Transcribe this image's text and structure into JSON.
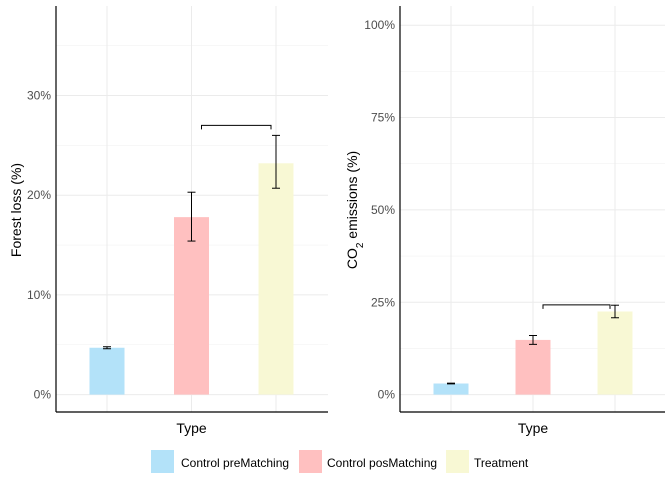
{
  "chart_data": [
    {
      "type": "bar",
      "xlabel": "Type",
      "ylabel": "Forest loss (%)",
      "ylim": [
        0,
        38
      ],
      "yticks": [
        0,
        10,
        20,
        30
      ],
      "ytick_labels": [
        "0%",
        "10%",
        "20%",
        "30%"
      ],
      "categories": [
        "Control preMatching",
        "Control posMatching",
        "Treatment"
      ],
      "values": [
        4.7,
        17.8,
        23.2
      ],
      "error_low": [
        4.6,
        15.4,
        20.7
      ],
      "error_high": [
        4.8,
        20.3,
        26.0
      ],
      "bracket": {
        "from": "Control posMatching",
        "to": "Treatment",
        "y": 27.0
      },
      "grid": true
    },
    {
      "type": "bar",
      "xlabel": "Type",
      "ylabel_main": "CO",
      "ylabel_sub": "2",
      "ylabel_rest": " emissions (%)",
      "ylim": [
        0,
        105
      ],
      "yticks": [
        0,
        25,
        50,
        75,
        100
      ],
      "ytick_labels": [
        "0%",
        "25%",
        "50%",
        "75%",
        "100%"
      ],
      "categories": [
        "Control preMatching",
        "Control posMatching",
        "Treatment"
      ],
      "values": [
        3.0,
        14.8,
        22.5
      ],
      "error_low": [
        2.9,
        13.6,
        20.8
      ],
      "error_high": [
        3.1,
        16.0,
        24.2
      ],
      "bracket": {
        "from": "Control posMatching",
        "to": "Treatment",
        "y": 24.3
      },
      "grid": true
    }
  ],
  "legend": {
    "placement": "bottom",
    "items": [
      {
        "label": "Control preMatching",
        "color": "#b3e2f9"
      },
      {
        "label": "Control posMatching",
        "color": "#ffc0c0"
      },
      {
        "label": "Treatment",
        "color": "#f8f8d4"
      }
    ]
  }
}
